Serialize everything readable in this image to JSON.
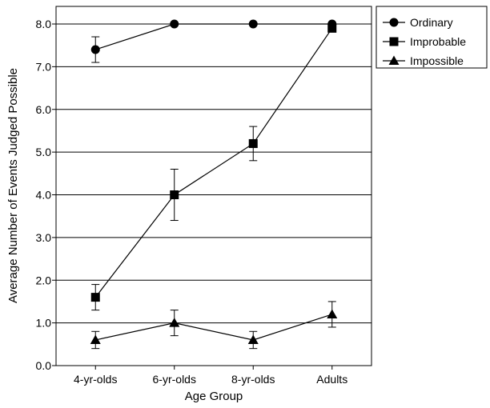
{
  "chart_data": {
    "type": "line",
    "title": "",
    "xlabel": "Age Group",
    "ylabel": "Average Number of Events Judged Possible",
    "categories": [
      "4-yr-olds",
      "6-yr-olds",
      "8-yr-olds",
      "Adults"
    ],
    "ylim": [
      0,
      8.0
    ],
    "yticks": [
      "0.0",
      "1.0",
      "2.0",
      "3.0",
      "4.0",
      "5.0",
      "6.0",
      "7.0",
      "8.0"
    ],
    "grid": "horizontal",
    "legend_position": "outside-top-right",
    "series": [
      {
        "name": "Ordinary",
        "marker": "circle",
        "values": [
          7.4,
          8.0,
          8.0,
          8.0
        ],
        "errors": [
          0.3,
          0,
          0,
          0
        ]
      },
      {
        "name": "Improbable",
        "marker": "square",
        "values": [
          1.6,
          4.0,
          5.2,
          7.9
        ],
        "errors": [
          0.3,
          0.6,
          0.4,
          0
        ]
      },
      {
        "name": "Impossible",
        "marker": "triangle",
        "values": [
          0.6,
          1.0,
          0.6,
          1.2
        ],
        "errors": [
          0.2,
          0.3,
          0.2,
          0.3
        ]
      }
    ]
  }
}
